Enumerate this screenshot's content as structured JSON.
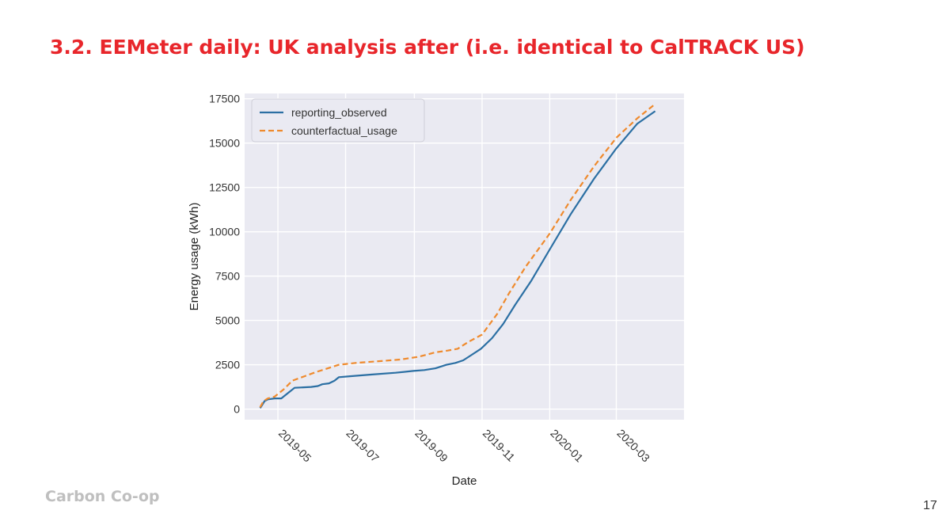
{
  "slide": {
    "title": "3.2. EEMeter daily: UK analysis after (i.e. identical to CalTRACK US)",
    "footer": "Carbon Co-op",
    "page_number": "17"
  },
  "chart_data": {
    "type": "line",
    "xlabel": "Date",
    "ylabel": "Energy usage (kWh)",
    "x_ticks": [
      "2019-05",
      "2019-07",
      "2019-09",
      "2019-11",
      "2020-01",
      "2020-03"
    ],
    "y_ticks": [
      0,
      2500,
      5000,
      7500,
      10000,
      12500,
      15000,
      17500
    ],
    "xlim": [
      "2019-04-01",
      "2020-05-01"
    ],
    "ylim": [
      -600,
      17800
    ],
    "grid": true,
    "legend_position": "top-left",
    "series": [
      {
        "name": "reporting_observed",
        "color": "#2b6fa3",
        "style": "solid",
        "points": [
          [
            "2019-04-15",
            50
          ],
          [
            "2019-04-17",
            250
          ],
          [
            "2019-04-19",
            450
          ],
          [
            "2019-04-22",
            550
          ],
          [
            "2019-04-28",
            600
          ],
          [
            "2019-05-04",
            600
          ],
          [
            "2019-05-10",
            900
          ],
          [
            "2019-05-16",
            1200
          ],
          [
            "2019-05-31",
            1250
          ],
          [
            "2019-06-06",
            1300
          ],
          [
            "2019-06-10",
            1400
          ],
          [
            "2019-06-16",
            1450
          ],
          [
            "2019-06-21",
            1600
          ],
          [
            "2019-06-25",
            1800
          ],
          [
            "2019-07-05",
            1850
          ],
          [
            "2019-07-25",
            1950
          ],
          [
            "2019-08-15",
            2050
          ],
          [
            "2019-08-31",
            2150
          ],
          [
            "2019-09-10",
            2200
          ],
          [
            "2019-09-20",
            2300
          ],
          [
            "2019-09-30",
            2500
          ],
          [
            "2019-10-08",
            2600
          ],
          [
            "2019-10-15",
            2750
          ],
          [
            "2019-10-20",
            2950
          ],
          [
            "2019-10-31",
            3400
          ],
          [
            "2019-11-10",
            4000
          ],
          [
            "2019-11-20",
            4800
          ],
          [
            "2019-12-01",
            5900
          ],
          [
            "2019-12-15",
            7200
          ],
          [
            "2020-01-01",
            9000
          ],
          [
            "2020-01-20",
            11000
          ],
          [
            "2020-02-10",
            13000
          ],
          [
            "2020-03-01",
            14700
          ],
          [
            "2020-03-20",
            16100
          ],
          [
            "2020-04-05",
            16800
          ]
        ]
      },
      {
        "name": "counterfactual_usage",
        "color": "#ef8a2d",
        "style": "dashed",
        "points": [
          [
            "2019-04-15",
            100
          ],
          [
            "2019-04-18",
            450
          ],
          [
            "2019-04-22",
            600
          ],
          [
            "2019-04-28",
            700
          ],
          [
            "2019-05-06",
            1100
          ],
          [
            "2019-05-14",
            1600
          ],
          [
            "2019-05-25",
            1850
          ],
          [
            "2019-06-05",
            2100
          ],
          [
            "2019-06-15",
            2300
          ],
          [
            "2019-06-25",
            2500
          ],
          [
            "2019-07-10",
            2600
          ],
          [
            "2019-07-31",
            2700
          ],
          [
            "2019-08-20",
            2800
          ],
          [
            "2019-09-05",
            2950
          ],
          [
            "2019-09-20",
            3200
          ],
          [
            "2019-10-01",
            3300
          ],
          [
            "2019-10-10",
            3400
          ],
          [
            "2019-10-20",
            3800
          ],
          [
            "2019-11-01",
            4200
          ],
          [
            "2019-11-15",
            5400
          ],
          [
            "2019-11-25",
            6500
          ],
          [
            "2019-12-10",
            8000
          ],
          [
            "2020-01-01",
            9900
          ],
          [
            "2020-01-20",
            11800
          ],
          [
            "2020-02-10",
            13700
          ],
          [
            "2020-03-01",
            15300
          ],
          [
            "2020-03-20",
            16400
          ],
          [
            "2020-04-05",
            17200
          ]
        ]
      }
    ]
  }
}
